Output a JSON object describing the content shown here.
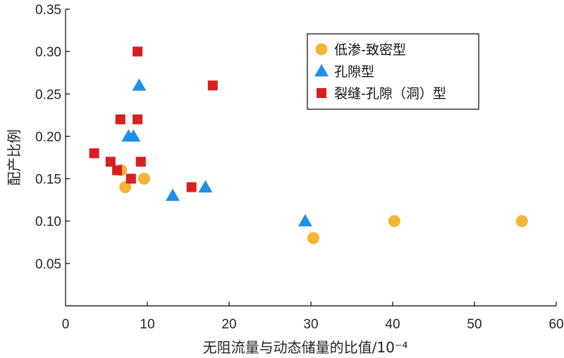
{
  "chart_data": {
    "type": "scatter",
    "xlabel": "无阻流量与动态储量的比值/10⁻⁴",
    "ylabel": "配产比例",
    "xlim": [
      0,
      60
    ],
    "ylim": [
      0,
      0.35
    ],
    "xticks": [
      "0",
      "10",
      "20",
      "30",
      "40",
      "50",
      "60"
    ],
    "yticks": [
      "0.05",
      "0.10",
      "0.15",
      "0.20",
      "0.25",
      "0.30",
      "0.35"
    ],
    "grid": false,
    "legend_position": "top-right",
    "series": [
      {
        "name": "低渗-致密型",
        "marker": "circle",
        "color": "#F2B535",
        "points": [
          [
            6.8,
            0.16
          ],
          [
            7.3,
            0.14
          ],
          [
            9.6,
            0.15
          ],
          [
            30.3,
            0.08
          ],
          [
            40.2,
            0.1
          ],
          [
            55.8,
            0.1
          ]
        ]
      },
      {
        "name": "孔隙型",
        "marker": "triangle",
        "color": "#1E90E8",
        "points": [
          [
            7.7,
            0.2
          ],
          [
            8.3,
            0.2
          ],
          [
            9.0,
            0.26
          ],
          [
            13.1,
            0.13
          ],
          [
            17.1,
            0.14
          ],
          [
            29.3,
            0.1
          ]
        ]
      },
      {
        "name": "裂缝-孔隙（洞）型",
        "marker": "square",
        "color": "#D81E1E",
        "points": [
          [
            3.5,
            0.18
          ],
          [
            5.5,
            0.17
          ],
          [
            6.7,
            0.22
          ],
          [
            6.3,
            0.16
          ],
          [
            8.0,
            0.15
          ],
          [
            8.8,
            0.3
          ],
          [
            8.8,
            0.22
          ],
          [
            9.2,
            0.17
          ],
          [
            15.4,
            0.14
          ],
          [
            18.0,
            0.26
          ]
        ]
      }
    ]
  }
}
